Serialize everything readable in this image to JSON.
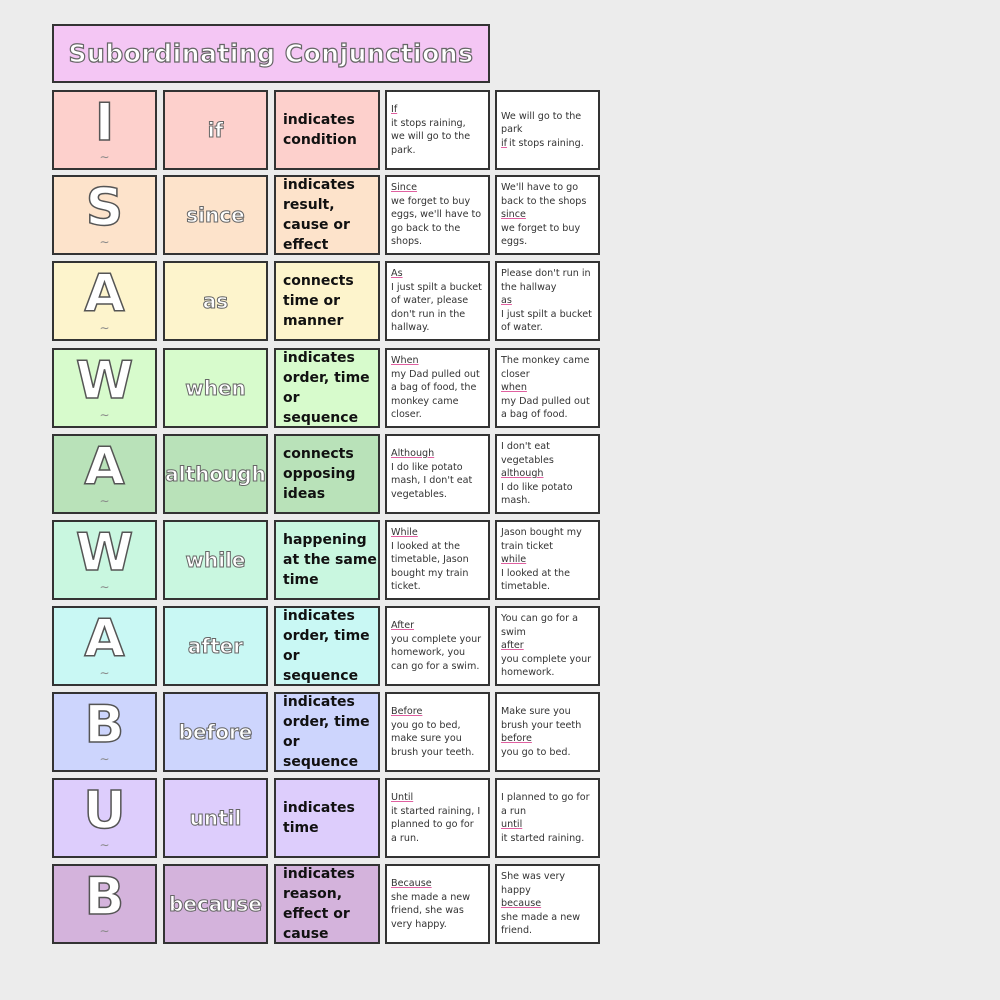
{
  "title": "Subordinating Conjunctions",
  "rows": [
    {
      "letter": "I",
      "word": "if",
      "meaning": "indicates condition",
      "example1": {
        "key": "If",
        "rest": " it stops raining, we will go to the park."
      },
      "example2": {
        "pre": "We will go to the park ",
        "key": "if",
        "post": " it stops raining."
      },
      "color": "#fdd0cc"
    },
    {
      "letter": "S",
      "word": "since",
      "meaning": "indicates result, cause or effect",
      "example1": {
        "key": "Since",
        "rest": " we forget to buy eggs, we'll have to go back to the shops."
      },
      "example2": {
        "pre": "We'll have to go back to the shops ",
        "key": "since",
        "post": " we forget to buy eggs."
      },
      "color": "#fde3cb"
    },
    {
      "letter": "A",
      "word": "as",
      "meaning": "connects time or manner",
      "example1": {
        "key": "As",
        "rest": " I just spilt a bucket of water, please don't run in the hallway."
      },
      "example2": {
        "pre": "Please don't run in the hallway ",
        "key": "as",
        "post": " I just spilt a bucket of water."
      },
      "color": "#fdf4cc"
    },
    {
      "letter": "W",
      "word": "when",
      "meaning": "indicates order, time or sequence",
      "example1": {
        "key": "When",
        "rest": " my Dad pulled out a bag of food, the monkey came closer."
      },
      "example2": {
        "pre": "The monkey came closer ",
        "key": "when",
        "post": " my Dad pulled out a bag of food."
      },
      "color": "#d7fbcc"
    },
    {
      "letter": "A",
      "word": "although",
      "meaning": "connects opposing ideas",
      "example1": {
        "key": "Although",
        "rest": " I do like potato mash, I don't eat vegetables."
      },
      "example2": {
        "pre": "I don't eat vegetables ",
        "key": "although",
        "post": " I do like potato mash."
      },
      "color": "#b9e2b9"
    },
    {
      "letter": "W",
      "word": "while",
      "meaning": "happening at the same time",
      "example1": {
        "key": "While",
        "rest": " I looked at the timetable, Jason bought my train ticket."
      },
      "example2": {
        "pre": "Jason bought my train ticket ",
        "key": "while",
        "post": " I looked at the timetable."
      },
      "color": "#c9f7e0"
    },
    {
      "letter": "A",
      "word": "after",
      "meaning": "indicates order, time or sequence",
      "example1": {
        "key": "After",
        "rest": " you complete your homework, you can go for a swim."
      },
      "example2": {
        "pre": "You can go for a swim ",
        "key": "after",
        "post": " you complete your homework."
      },
      "color": "#c9f8f4"
    },
    {
      "letter": "B",
      "word": "before",
      "meaning": "indicates order, time or sequence",
      "example1": {
        "key": "Before",
        "rest": " you go to bed, make sure you brush your teeth."
      },
      "example2": {
        "pre": "Make sure you brush your teeth ",
        "key": "before",
        "post": " you go to bed."
      },
      "color": "#cdd5fd"
    },
    {
      "letter": "U",
      "word": "until",
      "meaning": "indicates time",
      "example1": {
        "key": "Until",
        "rest": " it started raining, I planned to go for a run."
      },
      "example2": {
        "pre": "I planned to go for a run ",
        "key": "until",
        "post": " it started raining."
      },
      "color": "#ddcdfc"
    },
    {
      "letter": "B",
      "word": "because",
      "meaning": "indicates reason, effect or cause",
      "example1": {
        "key": "Because",
        "rest": " she made a new friend, she was very happy."
      },
      "example2": {
        "pre": "She was very happy ",
        "key": "because",
        "post": " she made a new friend."
      },
      "color": "#d4b3dc"
    }
  ]
}
